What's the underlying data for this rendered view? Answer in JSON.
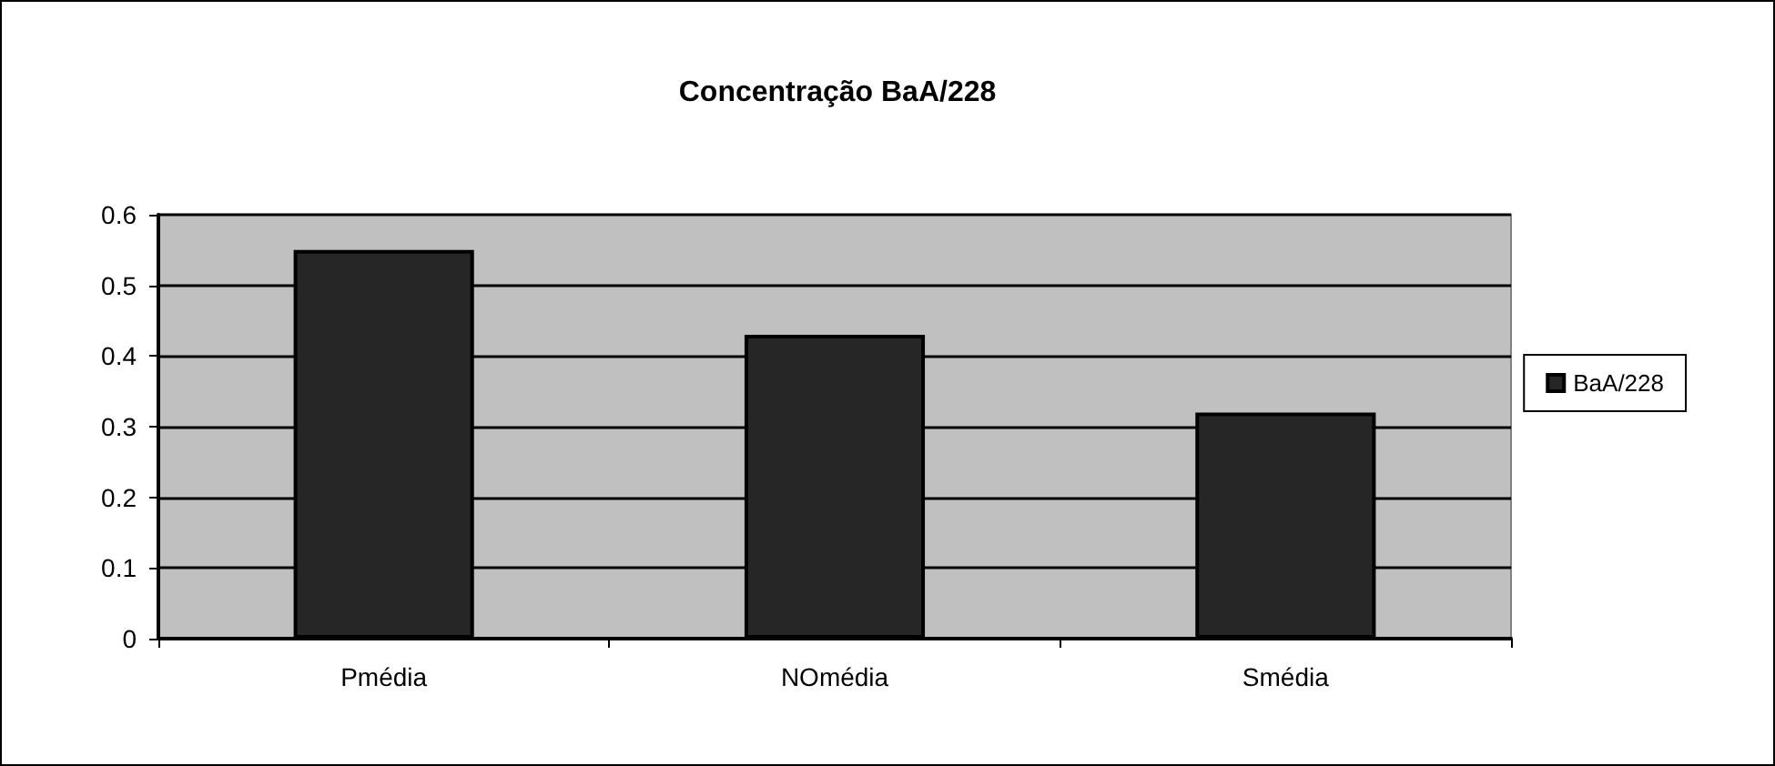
{
  "chart_data": {
    "type": "bar",
    "title": "Concentração BaA/228",
    "categories": [
      "Pmédia",
      "NOmédia",
      "Smédia"
    ],
    "series": [
      {
        "name": "BaA/228",
        "color": "#262626",
        "values": [
          0.55,
          0.43,
          0.32
        ]
      }
    ],
    "ylim": [
      0,
      0.6
    ],
    "yticks": [
      0,
      0.1,
      0.2,
      0.3,
      0.4,
      0.5,
      0.6
    ],
    "grid": "y",
    "legend": "right"
  }
}
